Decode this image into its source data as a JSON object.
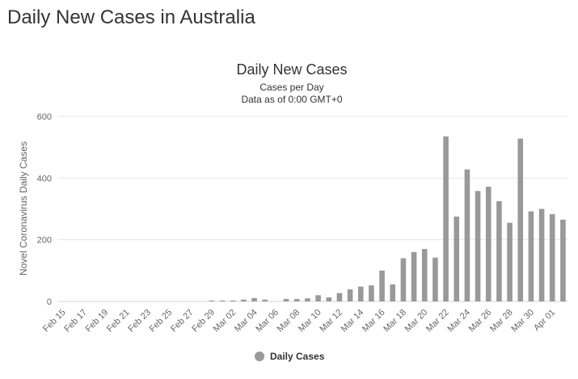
{
  "page": {
    "heading": "Daily New Cases in Australia"
  },
  "chart_data": {
    "type": "bar",
    "title": "Daily New Cases",
    "subtitle_lines": [
      "Cases per Day",
      "Data as of 0:00 GMT+0"
    ],
    "xlabel": "",
    "ylabel": "Novel Coronavirus Daily Cases",
    "ylim": [
      0,
      600
    ],
    "yticks": [
      0,
      200,
      400,
      600
    ],
    "grid": true,
    "legend_position": "bottom-center",
    "categories": [
      "Feb 15",
      "Feb 16",
      "Feb 17",
      "Feb 18",
      "Feb 19",
      "Feb 20",
      "Feb 21",
      "Feb 22",
      "Feb 23",
      "Feb 24",
      "Feb 25",
      "Feb 26",
      "Feb 27",
      "Feb 28",
      "Feb 29",
      "Mar 01",
      "Mar 02",
      "Mar 03",
      "Mar 04",
      "Mar 05",
      "Mar 06",
      "Mar 07",
      "Mar 08",
      "Mar 09",
      "Mar 10",
      "Mar 11",
      "Mar 12",
      "Mar 13",
      "Mar 14",
      "Mar 15",
      "Mar 16",
      "Mar 17",
      "Mar 18",
      "Mar 19",
      "Mar 20",
      "Mar 21",
      "Mar 22",
      "Mar 23",
      "Mar 24",
      "Mar 25",
      "Mar 26",
      "Mar 27",
      "Mar 28",
      "Mar 29",
      "Mar 30",
      "Mar 31",
      "Apr 01",
      "Apr 02"
    ],
    "tick_labels_shown": [
      "Feb 15",
      "Feb 17",
      "Feb 19",
      "Feb 21",
      "Feb 23",
      "Feb 25",
      "Feb 27",
      "Feb 29",
      "Mar 02",
      "Mar 04",
      "Mar 06",
      "Mar 08",
      "Mar 10",
      "Mar 12",
      "Mar 14",
      "Mar 16",
      "Mar 18",
      "Mar 20",
      "Mar 22",
      "Mar 24",
      "Mar 26",
      "Mar 28",
      "Mar 30",
      "Apr 01"
    ],
    "series": [
      {
        "name": "Daily Cases",
        "color": "#999999",
        "values": [
          0,
          0,
          0,
          0,
          0,
          0,
          0,
          0,
          0,
          0,
          0,
          0,
          0,
          0,
          3,
          3,
          3,
          6,
          11,
          6,
          0,
          8,
          8,
          10,
          20,
          13,
          27,
          39,
          48,
          52,
          100,
          55,
          140,
          160,
          170,
          142,
          535,
          275,
          428,
          358,
          372,
          325,
          255,
          528,
          292,
          300,
          283,
          265
        ]
      }
    ]
  }
}
